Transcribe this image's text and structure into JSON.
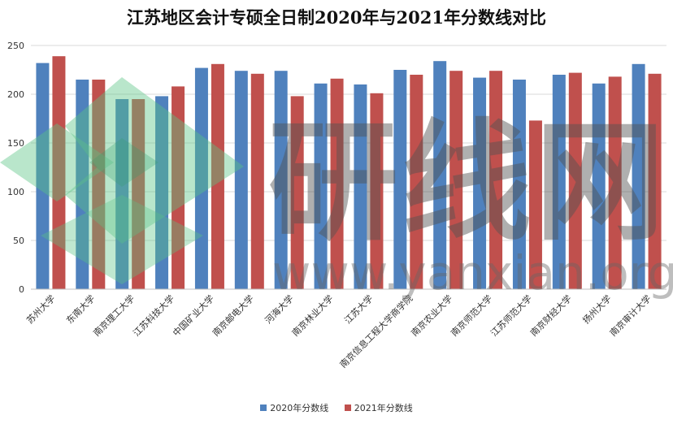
{
  "chart_data": {
    "type": "bar",
    "title": "江苏地区会计专硕全日制2020年与2021年分数线对比",
    "categories": [
      "苏州大学",
      "东南大学",
      "南京理工大学",
      "江苏科技大学",
      "中国矿业大学",
      "南京邮电大学",
      "河海大学",
      "南京林业大学",
      "江苏大学",
      "南京信息工程大学商学院",
      "南京农业大学",
      "南京师范大学",
      "江苏师范大学",
      "南京财经大学",
      "扬州大学",
      "南京审计大学"
    ],
    "series": [
      {
        "name": "2020年分数线",
        "color": "#4f81bd",
        "values": [
          232,
          215,
          195,
          198,
          227,
          224,
          224,
          211,
          210,
          225,
          234,
          217,
          215,
          220,
          211,
          231
        ]
      },
      {
        "name": "2021年分数线",
        "color": "#c0504d",
        "values": [
          239,
          215,
          195,
          208,
          231,
          221,
          198,
          216,
          201,
          220,
          224,
          224,
          173,
          222,
          218,
          221
        ]
      }
    ],
    "ylim": [
      0,
      250
    ],
    "yticks": [
      0,
      50,
      100,
      150,
      200,
      250
    ],
    "grid": true,
    "legend_position": "bottom",
    "watermark": {
      "text_cn": "研线网",
      "text_url": "www.yanxian.org"
    }
  }
}
